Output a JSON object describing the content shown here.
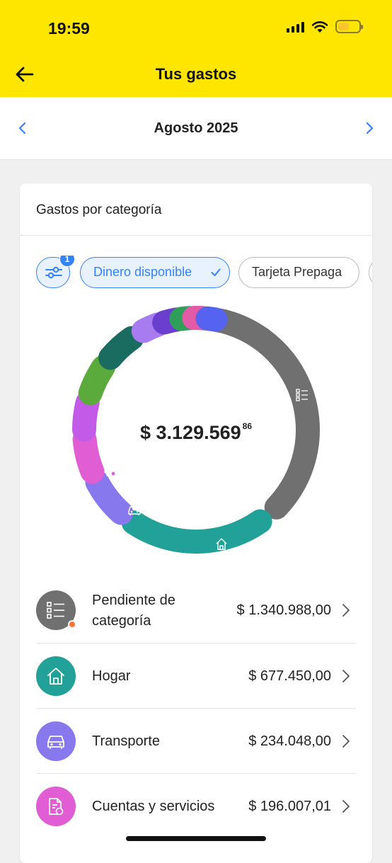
{
  "status_bar": {
    "time": "19:59"
  },
  "header": {
    "title": "Tus gastos"
  },
  "month_nav": {
    "label": "Agosto 2025"
  },
  "card": {
    "title": "Gastos por categoría",
    "filter_badge": "1",
    "chips": [
      {
        "label": "Dinero disponible",
        "selected": true
      },
      {
        "label": "Tarjeta Prepaga",
        "selected": false
      }
    ]
  },
  "donut": {
    "total": "$ 3.129.569",
    "total_cents": "86"
  },
  "categories": [
    {
      "name": "Pendiente de categoría",
      "amount": "$ 1.340.988,00",
      "color": "#707070",
      "icon": "list-icon"
    },
    {
      "name": "Hogar",
      "amount": "$ 677.450,00",
      "color": "#21a197",
      "icon": "home-icon"
    },
    {
      "name": "Transporte",
      "amount": "$ 234.048,00",
      "color": "#8778ee",
      "icon": "car-icon"
    },
    {
      "name": "Cuentas y servicios",
      "amount": "$ 196.007,01",
      "color": "#e05dd3",
      "icon": "bill-icon"
    }
  ],
  "colors": {
    "brand_yellow": "#ffe600",
    "accent_blue": "#3483fa",
    "segment_colors": [
      "#707070",
      "#21a197",
      "#8778ee",
      "#e05dd3",
      "#c45be8",
      "#5baa3c",
      "#1a6b60",
      "#a97bf0",
      "#6a3fd0",
      "#2e9e58",
      "#e35aa6",
      "#5663f0"
    ]
  }
}
